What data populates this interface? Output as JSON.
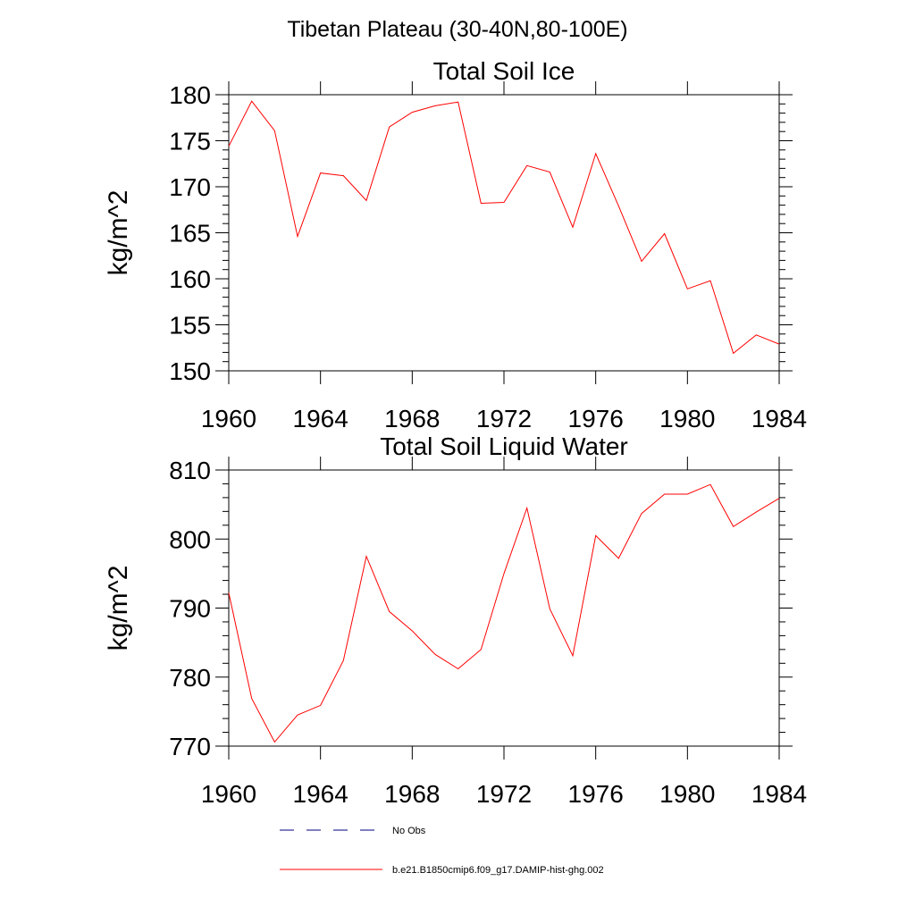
{
  "suptitle": "Tibetan Plateau (30-40N,80-100E)",
  "colors": {
    "model": "#ff0000",
    "obs": "#000080",
    "axis": "#000000"
  },
  "legend": {
    "items": [
      {
        "label": "No Obs",
        "style": "dashed",
        "color": "#000080"
      },
      {
        "label": "b.e21.B1850cmip6.f09_g17.DAMIP-hist-ghg.002",
        "style": "solid",
        "color": "#ff0000"
      }
    ]
  },
  "chart_data": [
    {
      "type": "line",
      "title": "Total Soil Ice",
      "xlabel": "",
      "ylabel": "kg/m^2",
      "xlim": [
        1960,
        1984
      ],
      "ylim": [
        150,
        180
      ],
      "xticks": [
        1960,
        1964,
        1968,
        1972,
        1976,
        1980,
        1984
      ],
      "yticks": [
        150,
        155,
        160,
        165,
        170,
        175,
        180
      ],
      "grid": false,
      "x": [
        1960,
        1961,
        1962,
        1963,
        1964,
        1965,
        1966,
        1967,
        1968,
        1969,
        1970,
        1971,
        1972,
        1973,
        1974,
        1975,
        1976,
        1977,
        1978,
        1979,
        1980,
        1981,
        1982,
        1983,
        1984
      ],
      "series": [
        {
          "name": "b.e21.B1850cmip6.f09_g17.DAMIP-hist-ghg.002",
          "color": "#ff0000",
          "values": [
            174.4,
            179.3,
            176.1,
            164.6,
            171.5,
            171.2,
            168.5,
            176.5,
            178.1,
            178.8,
            179.2,
            168.2,
            168.3,
            172.3,
            171.6,
            165.6,
            173.6,
            167.9,
            161.9,
            164.9,
            158.9,
            159.8,
            151.9,
            153.9,
            152.9
          ]
        }
      ]
    },
    {
      "type": "line",
      "title": "Total Soil Liquid Water",
      "xlabel": "",
      "ylabel": "kg/m^2",
      "xlim": [
        1960,
        1984
      ],
      "ylim": [
        770,
        810
      ],
      "xticks": [
        1960,
        1964,
        1968,
        1972,
        1976,
        1980,
        1984
      ],
      "yticks": [
        770,
        780,
        790,
        800,
        810
      ],
      "grid": false,
      "x": [
        1960,
        1961,
        1962,
        1963,
        1964,
        1965,
        1966,
        1967,
        1968,
        1969,
        1970,
        1971,
        1972,
        1973,
        1974,
        1975,
        1976,
        1977,
        1978,
        1979,
        1980,
        1981,
        1982,
        1983,
        1984
      ],
      "series": [
        {
          "name": "b.e21.B1850cmip6.f09_g17.DAMIP-hist-ghg.002",
          "color": "#ff0000",
          "values": [
            792.2,
            776.9,
            770.6,
            774.5,
            775.9,
            782.4,
            797.5,
            789.5,
            786.7,
            783.3,
            781.2,
            784.0,
            795.0,
            804.5,
            789.9,
            783.1,
            800.5,
            797.2,
            803.7,
            806.5,
            806.5,
            807.9,
            801.8,
            803.9,
            805.9
          ]
        }
      ]
    }
  ]
}
